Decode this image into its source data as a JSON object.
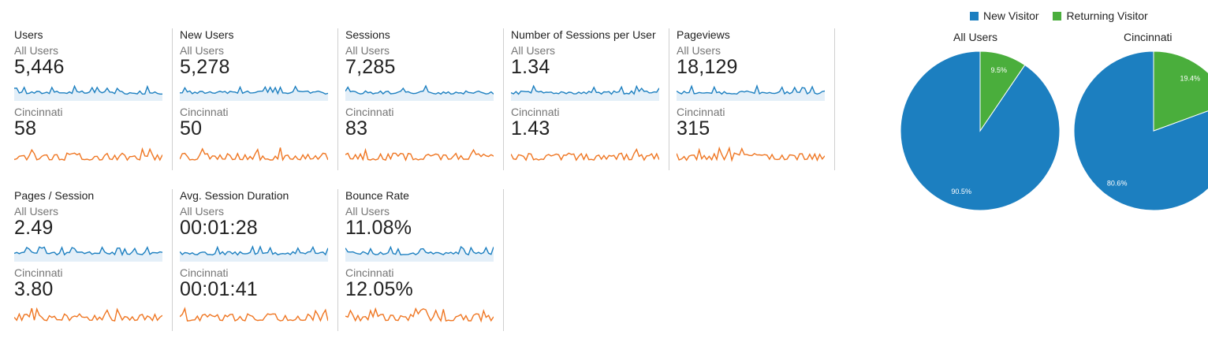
{
  "metrics": [
    {
      "title": "Users",
      "segments": [
        {
          "name": "All Users",
          "value": "5,446"
        },
        {
          "name": "Cincinnati",
          "value": "58"
        }
      ]
    },
    {
      "title": "New Users",
      "segments": [
        {
          "name": "All Users",
          "value": "5,278"
        },
        {
          "name": "Cincinnati",
          "value": "50"
        }
      ]
    },
    {
      "title": "Sessions",
      "segments": [
        {
          "name": "All Users",
          "value": "7,285"
        },
        {
          "name": "Cincinnati",
          "value": "83"
        }
      ]
    },
    {
      "title": "Number of Sessions per User",
      "segments": [
        {
          "name": "All Users",
          "value": "1.34"
        },
        {
          "name": "Cincinnati",
          "value": "1.43"
        }
      ]
    },
    {
      "title": "Pageviews",
      "segments": [
        {
          "name": "All Users",
          "value": "18,129"
        },
        {
          "name": "Cincinnati",
          "value": "315"
        }
      ]
    },
    {
      "title": "Pages / Session",
      "segments": [
        {
          "name": "All Users",
          "value": "2.49"
        },
        {
          "name": "Cincinnati",
          "value": "3.80"
        }
      ]
    },
    {
      "title": "Avg. Session Duration",
      "segments": [
        {
          "name": "All Users",
          "value": "00:01:28"
        },
        {
          "name": "Cincinnati",
          "value": "00:01:41"
        }
      ]
    },
    {
      "title": "Bounce Rate",
      "segments": [
        {
          "name": "All Users",
          "value": "11.08%"
        },
        {
          "name": "Cincinnati",
          "value": "12.05%"
        }
      ]
    }
  ],
  "colors": {
    "all_users_line": "#1c7fc0",
    "segment_line": "#ef7622",
    "new_visitor": "#1c7fc0",
    "returning_visitor": "#4aae3c"
  },
  "legend": {
    "new_visitor": "New Visitor",
    "returning_visitor": "Returning Visitor"
  },
  "chart_data": [
    {
      "type": "pie",
      "title": "All Users",
      "categories": [
        "New Visitor",
        "Returning Visitor"
      ],
      "values": [
        90.5,
        9.5
      ],
      "labels": [
        "90.5%",
        "9.5%"
      ]
    },
    {
      "type": "pie",
      "title": "Cincinnati",
      "categories": [
        "New Visitor",
        "Returning Visitor"
      ],
      "values": [
        80.6,
        19.4
      ],
      "labels": [
        "80.6%",
        "19.4%"
      ]
    }
  ]
}
